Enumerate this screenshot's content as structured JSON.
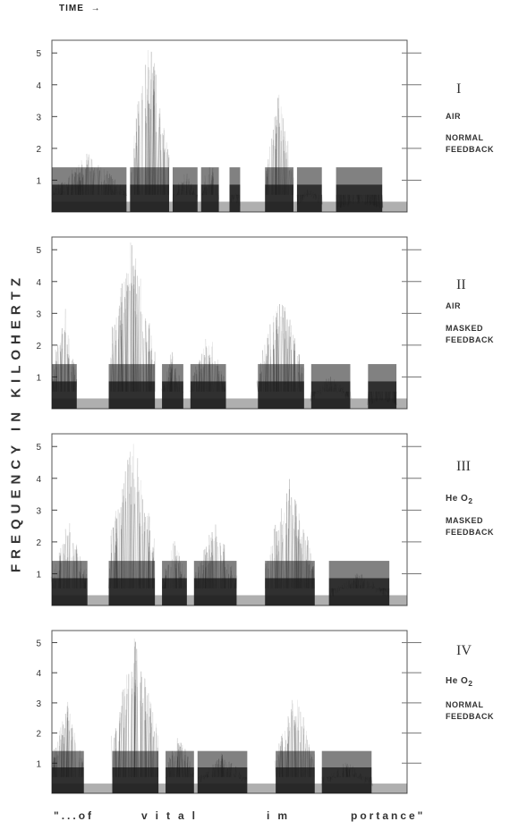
{
  "header": {
    "time_label": "TIME",
    "time_arrow": "→"
  },
  "yaxis": {
    "title": "FREQUENCY IN KILOHERTZ"
  },
  "panels": [
    {
      "roman": "I",
      "gas": "AIR",
      "feedback_line1": "NORMAL",
      "feedback_line2": "FEEDBACK",
      "ticks": [
        "1",
        "2",
        "3",
        "4",
        "5"
      ]
    },
    {
      "roman": "II",
      "gas": "AIR",
      "feedback_line1": "MASKED",
      "feedback_line2": "FEEDBACK",
      "ticks": [
        "1",
        "2",
        "3",
        "4",
        "5"
      ]
    },
    {
      "roman": "III",
      "gas": "He O",
      "gas_sub": "2",
      "feedback_line1": "MASKED",
      "feedback_line2": "FEEDBACK",
      "ticks": [
        "1",
        "2",
        "3",
        "4",
        "5"
      ]
    },
    {
      "roman": "IV",
      "gas": "He O",
      "gas_sub": "2",
      "feedback_line1": "NORMAL",
      "feedback_line2": "FEEDBACK",
      "ticks": [
        "1",
        "2",
        "3",
        "4",
        "5"
      ]
    }
  ],
  "caption": {
    "w1": "\"...of",
    "w2": "vital",
    "w3": "im",
    "w4": "portance\""
  },
  "colors": {
    "ink": "#1a1a1a",
    "paper": "#ffffff"
  }
}
